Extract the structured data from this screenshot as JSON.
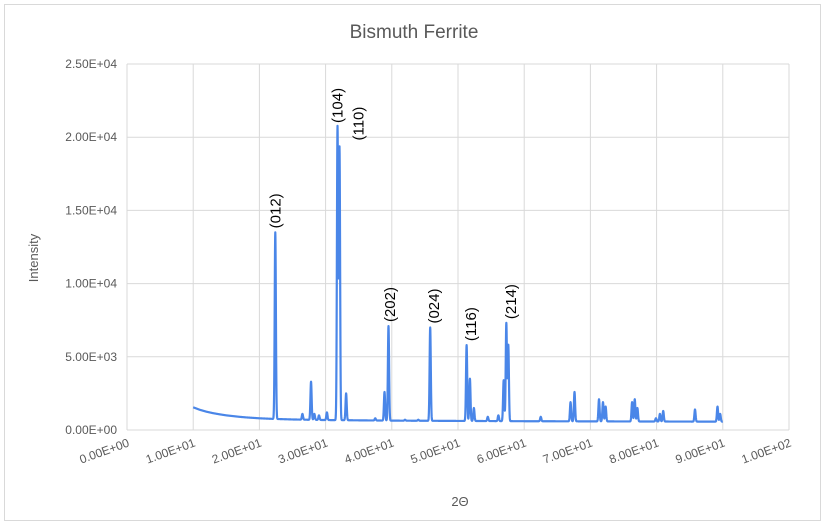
{
  "chart_data": {
    "type": "line",
    "title": "Bismuth Ferrite",
    "xlabel": "2Θ",
    "ylabel": "Intensity",
    "xlim": [
      0,
      100
    ],
    "ylim": [
      0,
      25000
    ],
    "x_ticks": [
      0,
      10,
      20,
      30,
      40,
      50,
      60,
      70,
      80,
      90,
      100
    ],
    "x_tick_labels": [
      "0.00E+00",
      "1.00E+01",
      "2.00E+01",
      "3.00E+01",
      "4.00E+01",
      "5.00E+01",
      "6.00E+01",
      "7.00E+01",
      "8.00E+01",
      "9.00E+01",
      "1.00E+02"
    ],
    "y_ticks": [
      0,
      5000,
      10000,
      15000,
      20000,
      25000
    ],
    "y_tick_labels": [
      "0.00E+00",
      "5.00E+03",
      "1.00E+04",
      "1.50E+04",
      "2.00E+04",
      "2.50E+04"
    ],
    "grid": true,
    "legend": "none",
    "series_color": "#4a86e8",
    "baseline": [
      {
        "x": 10,
        "y": 1550
      },
      {
        "x": 11,
        "y": 1380
      },
      {
        "x": 12,
        "y": 1250
      },
      {
        "x": 13,
        "y": 1150
      },
      {
        "x": 14,
        "y": 1070
      },
      {
        "x": 15,
        "y": 1000
      },
      {
        "x": 16,
        "y": 950
      },
      {
        "x": 17,
        "y": 900
      },
      {
        "x": 18,
        "y": 860
      },
      {
        "x": 19,
        "y": 830
      },
      {
        "x": 20,
        "y": 800
      },
      {
        "x": 22,
        "y": 760
      },
      {
        "x": 25,
        "y": 720
      },
      {
        "x": 30,
        "y": 680
      },
      {
        "x": 40,
        "y": 640
      },
      {
        "x": 50,
        "y": 620
      },
      {
        "x": 60,
        "y": 600
      },
      {
        "x": 70,
        "y": 590
      },
      {
        "x": 80,
        "y": 580
      },
      {
        "x": 90,
        "y": 570
      }
    ],
    "peaks": [
      {
        "x": 22.4,
        "y": 13500
      },
      {
        "x": 26.5,
        "y": 1100
      },
      {
        "x": 27.8,
        "y": 3300
      },
      {
        "x": 28.3,
        "y": 1100
      },
      {
        "x": 29.0,
        "y": 1000
      },
      {
        "x": 30.2,
        "y": 1200
      },
      {
        "x": 31.8,
        "y": 20700
      },
      {
        "x": 32.1,
        "y": 19300
      },
      {
        "x": 33.1,
        "y": 2500
      },
      {
        "x": 37.5,
        "y": 800
      },
      {
        "x": 38.9,
        "y": 2600
      },
      {
        "x": 39.5,
        "y": 7100
      },
      {
        "x": 42.0,
        "y": 700
      },
      {
        "x": 44.0,
        "y": 700
      },
      {
        "x": 45.8,
        "y": 7000
      },
      {
        "x": 51.3,
        "y": 5800
      },
      {
        "x": 51.8,
        "y": 3500
      },
      {
        "x": 52.4,
        "y": 1500
      },
      {
        "x": 54.5,
        "y": 900
      },
      {
        "x": 56.1,
        "y": 1000
      },
      {
        "x": 56.9,
        "y": 3400
      },
      {
        "x": 57.3,
        "y": 7300
      },
      {
        "x": 57.6,
        "y": 5800
      },
      {
        "x": 62.5,
        "y": 900
      },
      {
        "x": 67.0,
        "y": 1900
      },
      {
        "x": 67.6,
        "y": 2600
      },
      {
        "x": 71.3,
        "y": 2100
      },
      {
        "x": 71.9,
        "y": 1900
      },
      {
        "x": 72.3,
        "y": 1600
      },
      {
        "x": 76.3,
        "y": 1900
      },
      {
        "x": 76.7,
        "y": 2100
      },
      {
        "x": 77.1,
        "y": 1500
      },
      {
        "x": 79.9,
        "y": 800
      },
      {
        "x": 80.5,
        "y": 1100
      },
      {
        "x": 81.0,
        "y": 1300
      },
      {
        "x": 85.8,
        "y": 1400
      },
      {
        "x": 89.2,
        "y": 1600
      },
      {
        "x": 89.6,
        "y": 1100
      },
      {
        "x": 90.3,
        "y": 900
      }
    ],
    "annotations": [
      {
        "text": "(012)",
        "x": 22.4,
        "y": 13500
      },
      {
        "text": "(104)",
        "x": 31.8,
        "y": 20700
      },
      {
        "text": "(110)",
        "x": 35.0,
        "y": 19500
      },
      {
        "text": "(202)",
        "x": 39.7,
        "y": 7100
      },
      {
        "text": "(024)",
        "x": 46.4,
        "y": 7000
      },
      {
        "text": "(116)",
        "x": 52.0,
        "y": 5800
      },
      {
        "text": "(214)",
        "x": 58.0,
        "y": 7300
      }
    ]
  }
}
